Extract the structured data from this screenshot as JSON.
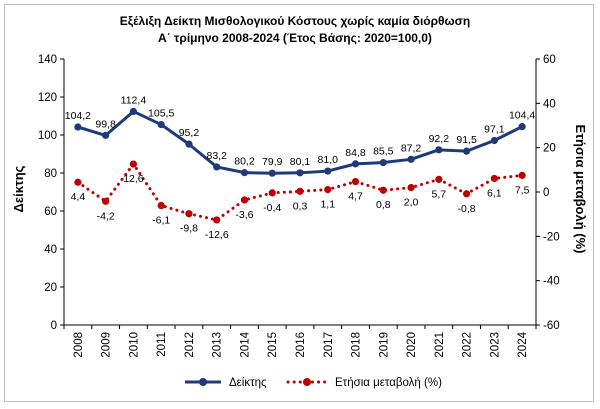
{
  "chart_data": {
    "type": "line",
    "title_lines": [
      "Εξέλιξη  Δείκτη Μισθολογικού Κόστους χωρίς καμία διόρθωση",
      "Α΄ τρίμηνο 2008-2024 (Έτος Βάσης: 2020=100,0)"
    ],
    "categories": [
      "2008",
      "2009",
      "2010",
      "2011",
      "2012",
      "2013",
      "2014",
      "2015",
      "2016",
      "2017",
      "2018",
      "2019",
      "2020",
      "2021",
      "2022",
      "2023",
      "2024"
    ],
    "y_left": {
      "label": "Δείκτης",
      "min": 0,
      "max": 140,
      "ticks": [
        0,
        20,
        40,
        60,
        80,
        100,
        120,
        140
      ]
    },
    "y_right": {
      "label": "Ετήσια μεταβολή (%)",
      "min": -60,
      "max": 60,
      "ticks": [
        -60,
        -40,
        -20,
        0,
        20,
        40,
        60
      ]
    },
    "series": [
      {
        "name": "Δείκτης",
        "axis": "left",
        "style": "solid",
        "color": "#1f3a78",
        "values": [
          104.2,
          99.8,
          112.4,
          105.5,
          95.2,
          83.2,
          80.2,
          79.9,
          80.1,
          81.0,
          84.8,
          85.5,
          87.2,
          92.2,
          91.5,
          97.1,
          104.4
        ],
        "labels": [
          "104,2",
          "99,8",
          "112,4",
          "105,5",
          "95,2",
          "83,2",
          "80,2",
          "79,9",
          "80,1",
          "81,0",
          "84,8",
          "85,5",
          "87,2",
          "92,2",
          "91,5",
          "97,1",
          "104,4"
        ]
      },
      {
        "name": "Ετήσια μεταβολή  (%)",
        "axis": "right",
        "style": "dotted",
        "color": "#c00000",
        "values": [
          4.4,
          -4.2,
          12.6,
          -6.1,
          -9.8,
          -12.6,
          -3.6,
          -0.4,
          0.3,
          1.1,
          4.7,
          0.8,
          2.0,
          5.7,
          -0.8,
          6.1,
          7.5
        ],
        "labels": [
          "4,4",
          "-4,2",
          "12,6",
          "-6,1",
          "-9,8",
          "-12,6",
          "-3,6",
          "-0,4",
          "0,3",
          "1,1",
          "4,7",
          "0,8",
          "2,0",
          "5,7",
          "-0,8",
          "6,1",
          "7,5"
        ]
      }
    ],
    "legend": "bottom",
    "grid": false
  }
}
